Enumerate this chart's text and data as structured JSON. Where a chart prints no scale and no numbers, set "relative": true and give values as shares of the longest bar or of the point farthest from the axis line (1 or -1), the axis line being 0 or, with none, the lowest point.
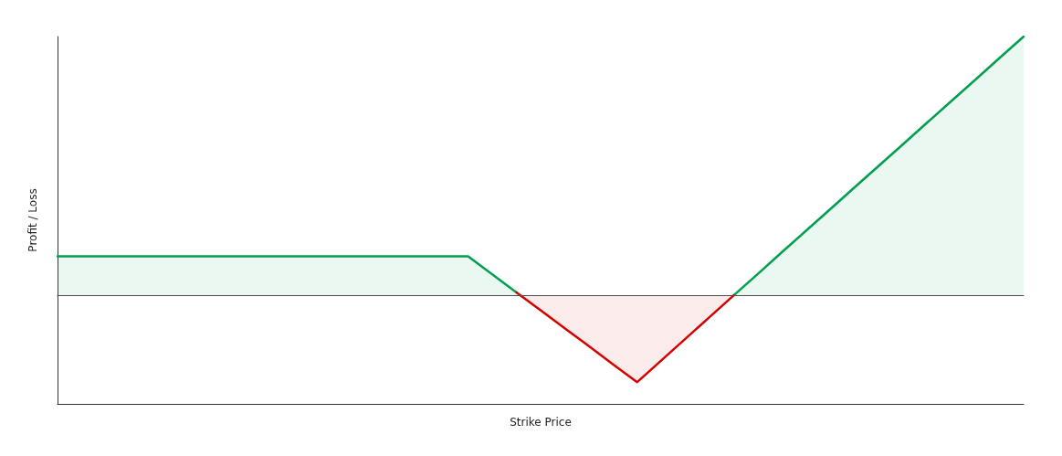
{
  "chart_data": {
    "type": "area",
    "relative": true,
    "xlabel": "Strike Price",
    "ylabel": "Profit / Loss",
    "categories": [
      null,
      null,
      null,
      null,
      null,
      null,
      null,
      null,
      null,
      null,
      null,
      null,
      null,
      null,
      null,
      null,
      null,
      null,
      null,
      null,
      null,
      null,
      null,
      null,
      null,
      null,
      null,
      null,
      null,
      null,
      null,
      null,
      null,
      null,
      null,
      null,
      null,
      null,
      null,
      null,
      null
    ],
    "series": [
      {
        "color": "#009e4f",
        "values": [
          0.15,
          0.15,
          0.15,
          0.15,
          0.15,
          0.15,
          0.15,
          0.15,
          0.15,
          0.15,
          0.15,
          0.15,
          0.15,
          0.15,
          0.15,
          0.15,
          0.15,
          0.15,
          0.081,
          0.011,
          null,
          null,
          null,
          null,
          null,
          null,
          null,
          null,
          0,
          0.083,
          0.167,
          0.25,
          0.333,
          0.417,
          0.5,
          0.583,
          0.667,
          0.75,
          0.833,
          0.917,
          1
        ]
      },
      {
        "color": "#d40000",
        "values": [
          null,
          null,
          null,
          null,
          null,
          null,
          null,
          null,
          null,
          null,
          null,
          null,
          null,
          null,
          null,
          null,
          null,
          null,
          null,
          0.011,
          -0.058,
          -0.128,
          -0.197,
          -0.267,
          -0.336,
          -0.252,
          -0.168,
          -0.084,
          0,
          null,
          null,
          null,
          null,
          null,
          null,
          null,
          null,
          null,
          null,
          null,
          null
        ]
      }
    ],
    "marker": "none",
    "grid": false
  }
}
